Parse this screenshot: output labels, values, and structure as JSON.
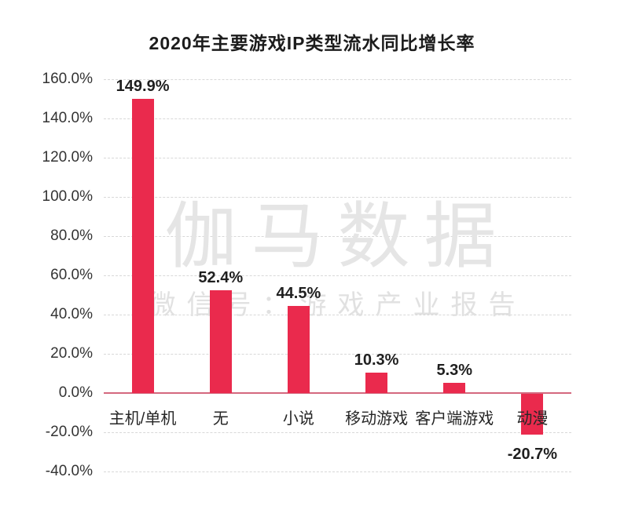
{
  "chart_data": {
    "type": "bar",
    "title": "2020年主要游戏IP类型流水同比增长率",
    "categories": [
      "主机/单机",
      "无",
      "小说",
      "移动游戏",
      "客户端游戏",
      "动漫"
    ],
    "values": [
      149.9,
      52.4,
      44.5,
      10.3,
      5.3,
      -20.7
    ],
    "value_labels": [
      "149.9%",
      "52.4%",
      "44.5%",
      "10.3%",
      "5.3%",
      "-20.7%"
    ],
    "ylabel": "",
    "xlabel": "",
    "ylim": [
      -40,
      160
    ],
    "ytick_step": 20,
    "ytick_labels": [
      "160.0%",
      "140.0%",
      "120.0%",
      "100.0%",
      "80.0%",
      "60.0%",
      "40.0%",
      "20.0%",
      "0.0%",
      "-20.0%",
      "-40.0%"
    ],
    "grid": "horizontal-dashed",
    "legend": "none",
    "bar_color": "#ea2a4d",
    "zero_line_color": "#d4687e",
    "grid_color": "#d8d8d8"
  },
  "watermark": {
    "line1": "伽马数据",
    "line2": "微信号：游戏产业报告"
  }
}
